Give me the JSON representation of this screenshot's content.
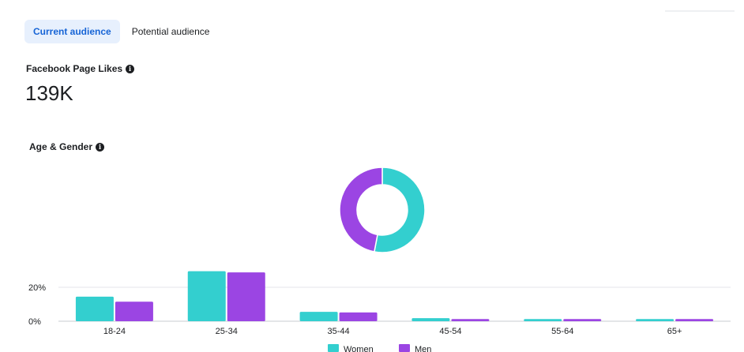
{
  "tabs": [
    {
      "label": "Current audience",
      "active": true
    },
    {
      "label": "Potential audience",
      "active": false
    }
  ],
  "metric": {
    "title": "Facebook Page Likes",
    "value": "139K"
  },
  "section": {
    "title": "Age & Gender"
  },
  "icons": {
    "info": "info-icon"
  },
  "colors": {
    "women": "#33cfcf",
    "men": "#9b45e3",
    "accent": "#1664d6",
    "tab_bg": "#e7f0fd"
  },
  "chart_data": [
    {
      "type": "pie",
      "donut": true,
      "labels": [
        "Women",
        "Men"
      ],
      "values": [
        53,
        47
      ]
    },
    {
      "type": "bar",
      "categories": [
        "18-24",
        "25-34",
        "35-44",
        "45-54",
        "55-64",
        "65+"
      ],
      "series": [
        {
          "name": "Women",
          "values": [
            14.5,
            29.5,
            5.5,
            1.8,
            1.3,
            1.3
          ]
        },
        {
          "name": "Men",
          "values": [
            11.5,
            28.8,
            5.2,
            1.3,
            1.3,
            1.3
          ]
        }
      ],
      "y_ticks": [
        "0%",
        "20%"
      ],
      "ylim": [
        0,
        30
      ],
      "legend": "bottom",
      "grid": true
    }
  ]
}
